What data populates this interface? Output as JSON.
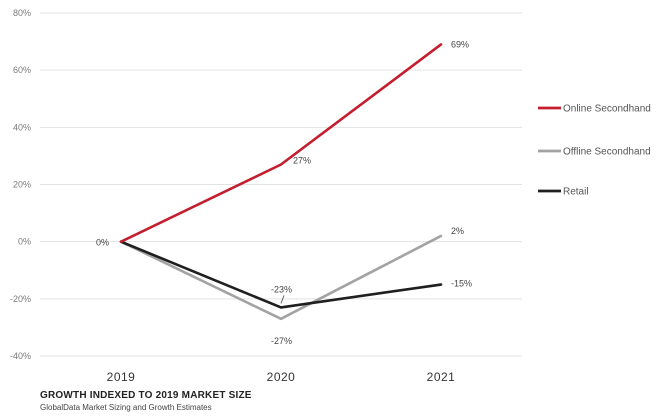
{
  "chart_data": {
    "type": "line",
    "x": [
      "2019",
      "2020",
      "2021"
    ],
    "ylim": [
      -40,
      80
    ],
    "yticks": [
      -40,
      -20,
      0,
      20,
      40,
      60,
      80
    ],
    "ytick_labels": [
      "-40%",
      "-20%",
      "0%",
      "20%",
      "40%",
      "60%",
      "80%"
    ],
    "grid": "horizontal",
    "legend_position": "right",
    "series": [
      {
        "name": "Online Secondhand",
        "values": [
          0,
          27,
          69
        ],
        "color": "#c41e2e",
        "labels": [
          "0%",
          "27%",
          "69%"
        ]
      },
      {
        "name": "Offline Secondhand",
        "values": [
          0,
          -27,
          2
        ],
        "color": "#a3a3a3",
        "labels": [
          "",
          "-27%",
          "2%"
        ]
      },
      {
        "name": "Retail",
        "values": [
          0,
          -23,
          -15
        ],
        "color": "#1f1f1f",
        "labels": [
          "",
          "-23%",
          "-15%"
        ]
      }
    ]
  },
  "footer": {
    "title": "GROWTH INDEXED TO 2019 MARKET SIZE",
    "subtitle": "GlobalData Market Sizing and Growth Estimates"
  }
}
